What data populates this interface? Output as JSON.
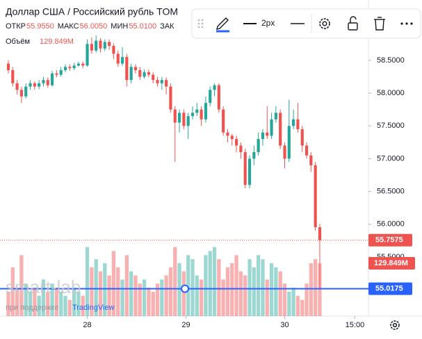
{
  "chart_data": {
    "type": "candlestick",
    "title": "Доллар США / Российский рубль TOM",
    "ohlc_header": [
      {
        "label": "ОТКР",
        "value": "55.9550"
      },
      {
        "label": "МАКС",
        "value": "56.0050"
      },
      {
        "label": "МИН",
        "value": "55.0100"
      },
      {
        "label": "ЗАК",
        "value": null
      }
    ],
    "volume_title": "Объём",
    "volume_last_label": "129.849M",
    "toolbar_width": "2px",
    "watermark": "smart-lab",
    "powered_prefix": "при поддержке",
    "powered_brand": "TradingView",
    "up_color": "#26a69a",
    "down_color": "#ef5350",
    "xlim": [
      -1.9,
      82.1
    ],
    "xticks": [
      {
        "value": 18,
        "label": "28"
      },
      {
        "value": 40.5,
        "label": "29"
      },
      {
        "value": 63,
        "label": "30"
      },
      {
        "value": 79,
        "label": "15:00"
      }
    ],
    "ylim": [
      54.6,
      59.42
    ],
    "yticks": [
      {
        "value": 55.5,
        "label": "55.5000"
      },
      {
        "value": 56,
        "label": "56.0000"
      },
      {
        "value": 56.5,
        "label": "56.5000"
      },
      {
        "value": 57,
        "label": "57.0000"
      },
      {
        "value": 57.5,
        "label": "57.5000"
      },
      {
        "value": 58,
        "label": "58.0000"
      },
      {
        "value": 58.5,
        "label": "58.5000"
      }
    ],
    "y2lim": [
      0,
      778
    ],
    "hline": 55.0175,
    "open": [
      58.45,
      58.35,
      58.15,
      58.05,
      57.95,
      58.1,
      58.15,
      58.1,
      58.15,
      58.2,
      58.12,
      58.3,
      58.28,
      58.35,
      58.4,
      58.38,
      58.42,
      58.45,
      58.42,
      58.75,
      58.65,
      58.8,
      58.68,
      58.78,
      58.72,
      58.6,
      58.45,
      58.55,
      58.2,
      58.4,
      58.35,
      58.25,
      58.32,
      58.28,
      58.2,
      58.15,
      58.2,
      58.1,
      57.75,
      57.55,
      57.7,
      57.5,
      57.65,
      57.7,
      57.75,
      57.6,
      57.85,
      58.05,
      58.12,
      57.75,
      57.4,
      57.35,
      57.3,
      57.2,
      57.1,
      56.6,
      57.0,
      57.1,
      57.3,
      57.4,
      57.35,
      57.6,
      57.7,
      57.2,
      57.0,
      57.5,
      57.6,
      57.45,
      57.2,
      57.05,
      56.9,
      55.955
    ],
    "high": [
      58.5,
      58.4,
      58.2,
      58.1,
      58.15,
      58.2,
      58.18,
      58.2,
      58.25,
      58.24,
      58.34,
      58.35,
      58.4,
      58.44,
      58.44,
      58.46,
      58.48,
      58.48,
      58.82,
      58.85,
      58.88,
      58.84,
      58.82,
      58.82,
      58.76,
      58.65,
      58.7,
      58.6,
      58.45,
      58.44,
      58.4,
      58.36,
      58.36,
      58.32,
      58.25,
      58.25,
      58.24,
      58.15,
      57.8,
      57.75,
      57.75,
      57.7,
      57.8,
      57.85,
      57.8,
      57.95,
      58.1,
      58.15,
      58.15,
      57.8,
      57.45,
      57.38,
      57.35,
      57.25,
      57.15,
      57.05,
      57.2,
      57.4,
      57.45,
      57.8,
      57.7,
      57.8,
      57.75,
      57.25,
      57.9,
      57.75,
      57.85,
      57.5,
      57.25,
      57.1,
      56.95,
      56.005
    ],
    "low": [
      58.3,
      58.1,
      57.98,
      57.85,
      57.92,
      58.05,
      58.05,
      58.06,
      58.1,
      58.08,
      58.1,
      58.24,
      58.25,
      58.32,
      58.34,
      58.35,
      58.4,
      58.38,
      58.4,
      58.6,
      58.62,
      58.62,
      58.64,
      58.66,
      58.52,
      58.4,
      58.42,
      58.1,
      58.15,
      58.3,
      58.2,
      58.22,
      58.24,
      58.15,
      58.1,
      58.05,
      57.98,
      57.7,
      56.95,
      57.4,
      57.45,
      57.3,
      57.6,
      57.65,
      57.5,
      57.55,
      57.8,
      57.95,
      57.7,
      57.35,
      57.25,
      57.2,
      57.1,
      57.0,
      56.55,
      56.55,
      56.9,
      57.05,
      57.2,
      57.3,
      57.3,
      57.55,
      57.15,
      56.85,
      56.95,
      57.45,
      57.4,
      57.1,
      57.0,
      56.8,
      55.9,
      55.01
    ],
    "close": [
      58.35,
      58.15,
      58.05,
      57.95,
      58.1,
      58.15,
      58.1,
      58.15,
      58.2,
      58.12,
      58.3,
      58.28,
      58.35,
      58.4,
      58.38,
      58.42,
      58.45,
      58.42,
      58.75,
      58.65,
      58.8,
      58.68,
      58.78,
      58.72,
      58.6,
      58.45,
      58.55,
      58.2,
      58.4,
      58.35,
      58.25,
      58.32,
      58.28,
      58.2,
      58.15,
      58.2,
      58.1,
      57.75,
      57.55,
      57.7,
      57.5,
      57.65,
      57.7,
      57.75,
      57.6,
      57.85,
      58.05,
      58.12,
      57.75,
      57.4,
      57.35,
      57.3,
      57.2,
      57.1,
      56.6,
      57.0,
      57.1,
      57.3,
      57.4,
      57.35,
      57.6,
      57.7,
      57.2,
      57.0,
      57.5,
      57.6,
      57.45,
      57.2,
      57.05,
      56.9,
      55.955,
      55.7575
    ],
    "volume": [
      60,
      120,
      70,
      150,
      80,
      60,
      70,
      50,
      90,
      60,
      80,
      70,
      60,
      50,
      40,
      70,
      60,
      50,
      170,
      120,
      140,
      110,
      130,
      100,
      160,
      120,
      90,
      150,
      110,
      100,
      80,
      90,
      70,
      60,
      80,
      90,
      100,
      120,
      170,
      130,
      110,
      150,
      140,
      100,
      90,
      150,
      160,
      170,
      140,
      90,
      120,
      130,
      150,
      110,
      100,
      140,
      120,
      150,
      140,
      90,
      130,
      120,
      110,
      80,
      60,
      70,
      50,
      40,
      80,
      130,
      140,
      129.849
    ]
  }
}
